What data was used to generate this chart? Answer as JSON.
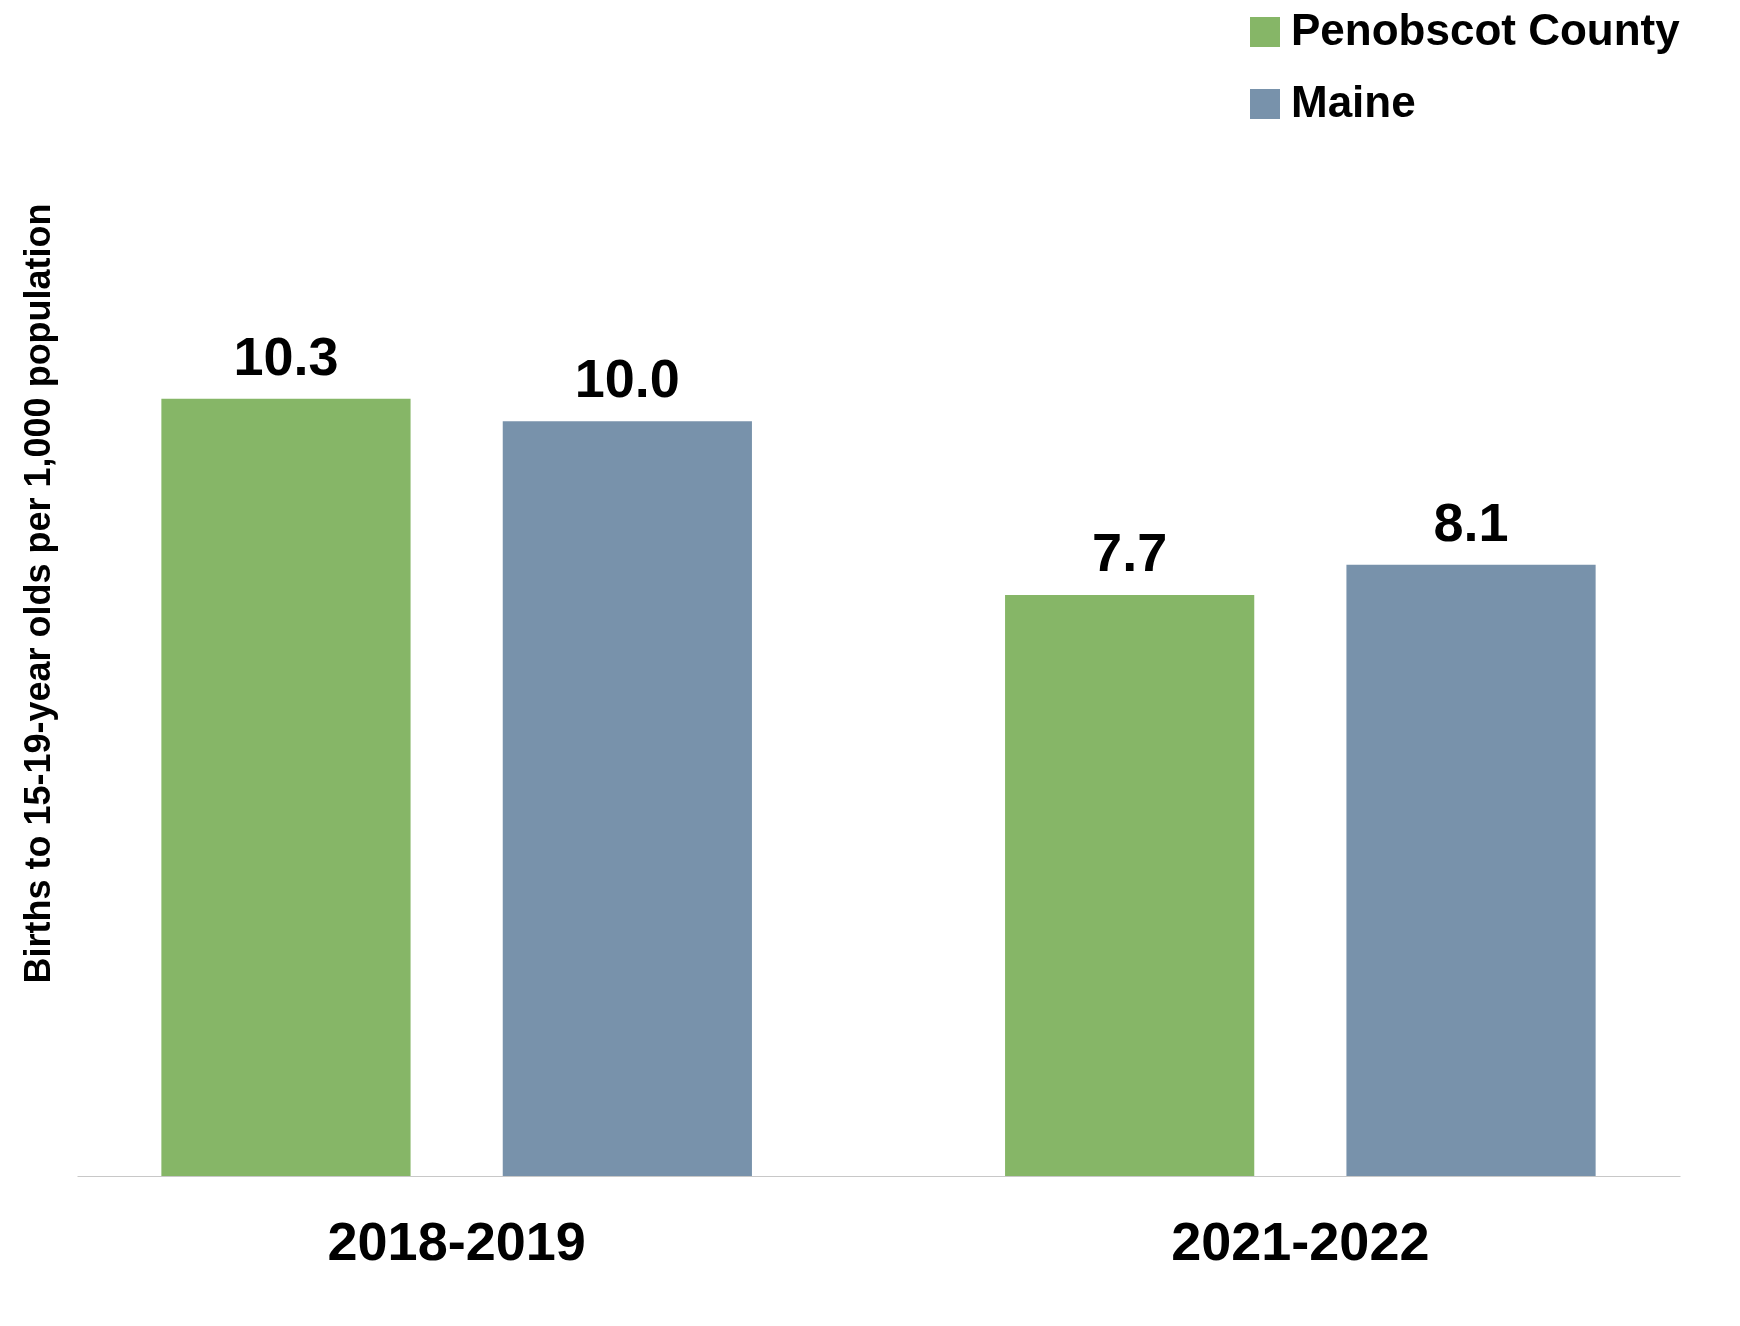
{
  "chart_data": {
    "type": "bar",
    "ylabel": "Births to 15-19-year olds per 1,000 population",
    "categories": [
      "2018-2019",
      "2021-2022"
    ],
    "series": [
      {
        "name": "Penobscot County",
        "color": "#86b667",
        "values": [
          10.3,
          7.7
        ],
        "value_labels": [
          "10.3",
          "7.7"
        ]
      },
      {
        "name": "Maine",
        "color": "#7892ab",
        "values": [
          10.0,
          8.1
        ],
        "value_labels": [
          "10.0",
          "8.1"
        ]
      }
    ],
    "legend": "top right"
  }
}
